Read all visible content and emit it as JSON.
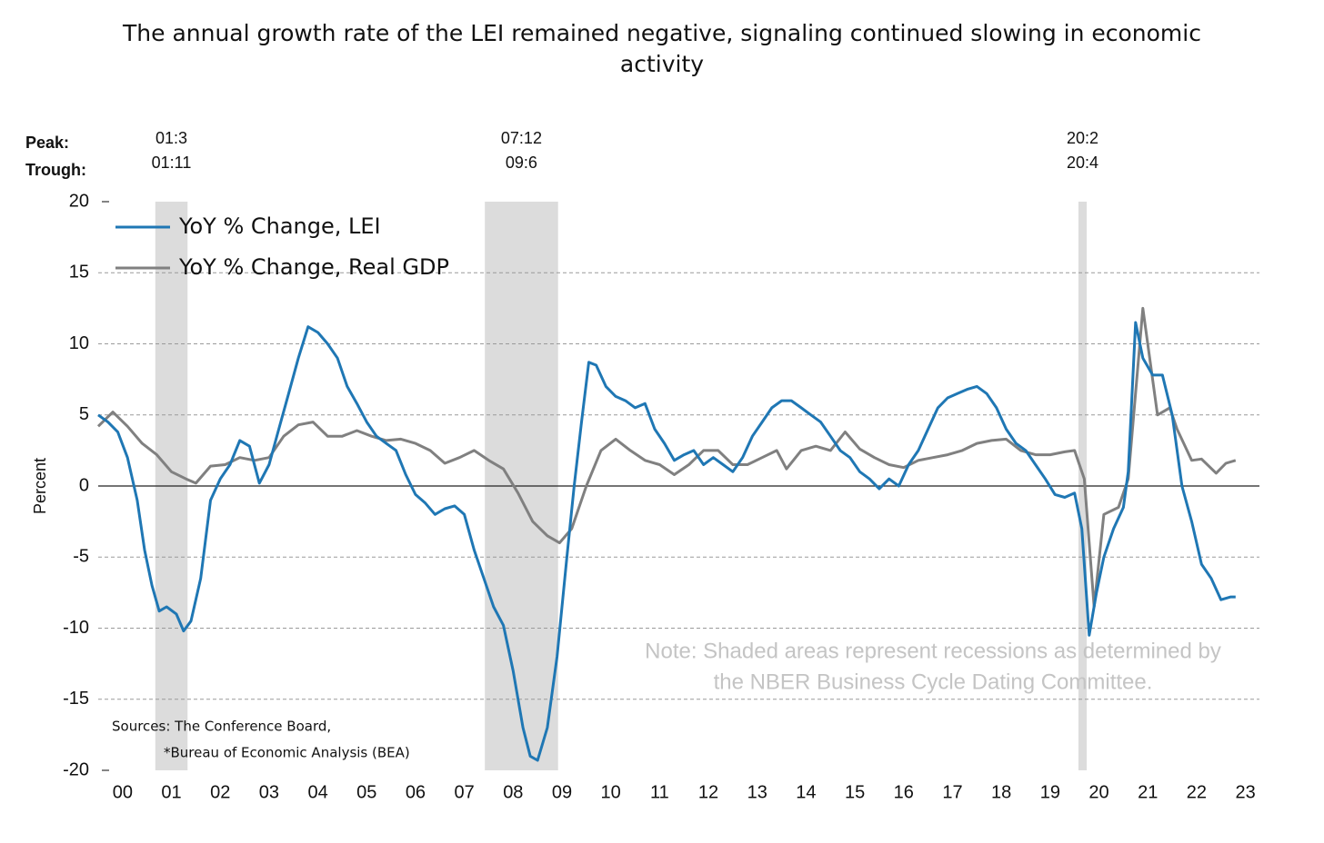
{
  "chart_data": {
    "type": "line",
    "title": "The annual growth rate of the LEI remained negative, signaling continued slowing in economic activity",
    "ylabel": "Percent",
    "xlim": [
      2000,
      2023.75
    ],
    "ylim": [
      -20,
      20
    ],
    "yticks": [
      -20,
      -15,
      -10,
      -5,
      0,
      5,
      10,
      15,
      20
    ],
    "xticks": [
      {
        "value": 2000.5,
        "label": "00"
      },
      {
        "value": 2001.5,
        "label": "01"
      },
      {
        "value": 2002.5,
        "label": "02"
      },
      {
        "value": 2003.5,
        "label": "03"
      },
      {
        "value": 2004.5,
        "label": "04"
      },
      {
        "value": 2005.5,
        "label": "05"
      },
      {
        "value": 2006.5,
        "label": "06"
      },
      {
        "value": 2007.5,
        "label": "07"
      },
      {
        "value": 2008.5,
        "label": "08"
      },
      {
        "value": 2009.5,
        "label": "09"
      },
      {
        "value": 2010.5,
        "label": "10"
      },
      {
        "value": 2011.5,
        "label": "11"
      },
      {
        "value": 2012.5,
        "label": "12"
      },
      {
        "value": 2013.5,
        "label": "13"
      },
      {
        "value": 2014.5,
        "label": "14"
      },
      {
        "value": 2015.5,
        "label": "15"
      },
      {
        "value": 2016.5,
        "label": "16"
      },
      {
        "value": 2017.5,
        "label": "17"
      },
      {
        "value": 2018.5,
        "label": "18"
      },
      {
        "value": 2019.5,
        "label": "19"
      },
      {
        "value": 2020.5,
        "label": "20"
      },
      {
        "value": 2021.5,
        "label": "21"
      },
      {
        "value": 2022.5,
        "label": "22"
      },
      {
        "value": 2023.5,
        "label": "23"
      }
    ],
    "grid": true,
    "legend": "upper left",
    "peak_label": "Peak:",
    "trough_label": "Trough:",
    "recessions": [
      {
        "peak": "01:3",
        "trough": "01:11",
        "start": 2001.17,
        "end": 2001.83
      },
      {
        "peak": "07:12",
        "trough": "09:6",
        "start": 2007.92,
        "end": 2009.42
      },
      {
        "peak": "20:2",
        "trough": "20:4",
        "start": 2020.08,
        "end": 2020.25
      }
    ],
    "recession_color": "#dcdcdc",
    "note": [
      "Note: Shaded areas represent recessions as determined by",
      "the NBER Business Cycle Dating Committee."
    ],
    "sources": [
      "Sources: The Conference Board,",
      "*Bureau of Economic Analysis (BEA)"
    ],
    "series": [
      {
        "name": "YoY % Change, LEI",
        "color": "#1f77b4",
        "x": [
          2000.0,
          2000.2,
          2000.4,
          2000.6,
          2000.8,
          2000.95,
          2001.1,
          2001.25,
          2001.4,
          2001.6,
          2001.75,
          2001.9,
          2002.1,
          2002.3,
          2002.5,
          2002.7,
          2002.9,
          2003.1,
          2003.3,
          2003.5,
          2003.7,
          2003.9,
          2004.1,
          2004.3,
          2004.5,
          2004.7,
          2004.9,
          2005.1,
          2005.3,
          2005.5,
          2005.7,
          2005.9,
          2006.1,
          2006.3,
          2006.5,
          2006.7,
          2006.9,
          2007.1,
          2007.3,
          2007.5,
          2007.7,
          2007.9,
          2008.1,
          2008.3,
          2008.5,
          2008.7,
          2008.85,
          2009.0,
          2009.2,
          2009.4,
          2009.6,
          2009.75,
          2009.9,
          2010.05,
          2010.2,
          2010.4,
          2010.6,
          2010.8,
          2011.0,
          2011.2,
          2011.4,
          2011.6,
          2011.8,
          2012.0,
          2012.2,
          2012.4,
          2012.6,
          2012.8,
          2013.0,
          2013.2,
          2013.4,
          2013.6,
          2013.8,
          2014.0,
          2014.2,
          2014.4,
          2014.6,
          2014.8,
          2015.0,
          2015.2,
          2015.4,
          2015.6,
          2015.8,
          2016.0,
          2016.2,
          2016.4,
          2016.6,
          2016.8,
          2017.0,
          2017.2,
          2017.4,
          2017.6,
          2017.8,
          2018.0,
          2018.2,
          2018.4,
          2018.6,
          2018.8,
          2019.0,
          2019.2,
          2019.4,
          2019.6,
          2019.8,
          2020.0,
          2020.15,
          2020.3,
          2020.45,
          2020.6,
          2020.8,
          2021.0,
          2021.1,
          2021.25,
          2021.4,
          2021.6,
          2021.8,
          2022.0,
          2022.2,
          2022.4,
          2022.6,
          2022.8,
          2023.0,
          2023.2,
          2023.3
        ],
        "values": [
          5,
          4.5,
          3.8,
          2,
          -1,
          -4.5,
          -7,
          -8.8,
          -8.5,
          -9,
          -10.2,
          -9.5,
          -6.5,
          -1,
          0.5,
          1.5,
          3.2,
          2.8,
          0.2,
          1.5,
          4,
          6.5,
          9,
          11.2,
          10.8,
          10,
          9,
          7,
          5.8,
          4.5,
          3.5,
          3,
          2.5,
          0.8,
          -0.6,
          -1.2,
          -2,
          -1.6,
          -1.4,
          -2,
          -4.5,
          -6.5,
          -8.5,
          -9.8,
          -13,
          -17,
          -19,
          -19.3,
          -17,
          -12,
          -5,
          0,
          4.5,
          8.7,
          8.5,
          7,
          6.3,
          6,
          5.5,
          5.8,
          4,
          3,
          1.8,
          2.2,
          2.5,
          1.5,
          2,
          1.5,
          1,
          2,
          3.5,
          4.5,
          5.5,
          6,
          6,
          5.5,
          5,
          4.5,
          3.5,
          2.5,
          2,
          1,
          0.5,
          -0.2,
          0.5,
          0,
          1.5,
          2.5,
          4,
          5.5,
          6.2,
          6.5,
          6.8,
          7,
          6.5,
          5.5,
          4,
          3,
          2.5,
          1.5,
          0.5,
          -0.6,
          -0.8,
          -0.5,
          -3,
          -10.5,
          -7.5,
          -5,
          -3,
          -1.5,
          1,
          11.5,
          9,
          7.8,
          7.8,
          5,
          0,
          -2.5,
          -5.5,
          -6.5,
          -8,
          -7.8,
          -7.8
        ]
      },
      {
        "name": "YoY % Change, Real GDP",
        "color": "#808080",
        "x": [
          2000.0,
          2000.3,
          2000.6,
          2000.9,
          2001.2,
          2001.5,
          2001.8,
          2002.0,
          2002.3,
          2002.6,
          2002.9,
          2003.2,
          2003.5,
          2003.8,
          2004.1,
          2004.4,
          2004.7,
          2005.0,
          2005.3,
          2005.6,
          2005.9,
          2006.2,
          2006.5,
          2006.8,
          2007.1,
          2007.4,
          2007.7,
          2008.0,
          2008.3,
          2008.6,
          2008.9,
          2009.2,
          2009.45,
          2009.7,
          2010.0,
          2010.3,
          2010.6,
          2010.9,
          2011.2,
          2011.5,
          2011.8,
          2012.1,
          2012.4,
          2012.7,
          2013.0,
          2013.3,
          2013.6,
          2013.9,
          2014.1,
          2014.4,
          2014.7,
          2015.0,
          2015.3,
          2015.6,
          2015.9,
          2016.2,
          2016.5,
          2016.8,
          2017.1,
          2017.4,
          2017.7,
          2018.0,
          2018.3,
          2018.6,
          2018.9,
          2019.2,
          2019.5,
          2019.8,
          2020.0,
          2020.2,
          2020.4,
          2020.6,
          2020.9,
          2021.1,
          2021.4,
          2021.7,
          2021.95,
          2022.1,
          2022.4,
          2022.6,
          2022.9,
          2023.1,
          2023.3
        ],
        "values": [
          4.2,
          5.2,
          4.2,
          3,
          2.2,
          1,
          0.5,
          0.2,
          1.4,
          1.5,
          2,
          1.8,
          2,
          3.5,
          4.3,
          4.5,
          3.5,
          3.5,
          3.9,
          3.5,
          3.2,
          3.3,
          3,
          2.5,
          1.6,
          2,
          2.5,
          1.8,
          1.2,
          -0.5,
          -2.5,
          -3.5,
          -4,
          -3,
          0,
          2.5,
          3.3,
          2.5,
          1.8,
          1.5,
          0.8,
          1.5,
          2.5,
          2.5,
          1.5,
          1.5,
          2,
          2.5,
          1.2,
          2.5,
          2.8,
          2.5,
          3.8,
          2.6,
          2,
          1.5,
          1.3,
          1.8,
          2,
          2.2,
          2.5,
          3,
          3.2,
          3.3,
          2.5,
          2.2,
          2.2,
          2.4,
          2.5,
          0.5,
          -8.5,
          -2,
          -1.5,
          0.5,
          12.5,
          5,
          5.5,
          4,
          1.8,
          1.9,
          0.9,
          1.6,
          1.8
        ]
      }
    ]
  }
}
